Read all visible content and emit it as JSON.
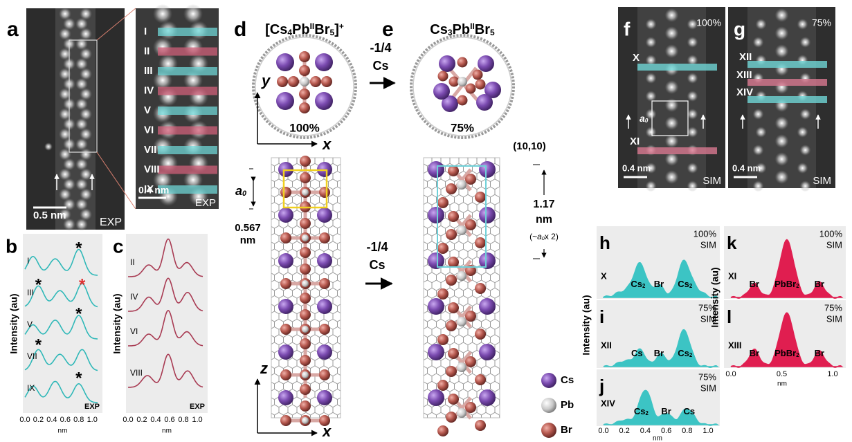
{
  "a": {
    "label": "a",
    "scale": "0.5 nm",
    "mode": "EXP"
  },
  "a_inset": {
    "rows": [
      "I",
      "II",
      "III",
      "IV",
      "V",
      "VI",
      "VII",
      "VIII",
      "IX"
    ],
    "scale": "0.4 nm",
    "mode": "EXP"
  },
  "b": {
    "label": "b",
    "ylabel": "Intensity (au)",
    "traces": [
      "I",
      "III",
      "V",
      "VII",
      "IX"
    ],
    "asterisks": [
      "*",
      "*",
      "*",
      "*",
      "*",
      "*"
    ],
    "xticks": [
      "0.0",
      "0.2",
      "0.4",
      "0.6",
      "0.8",
      "1.0"
    ],
    "xlabel": "nm",
    "mode": "EXP"
  },
  "c": {
    "label": "c",
    "ylabel": "Intensity (au)",
    "traces": [
      "II",
      "IV",
      "VI",
      "VIII"
    ],
    "xticks": [
      "0.0",
      "0.2",
      "0.4",
      "0.6",
      "0.8",
      "1.0"
    ],
    "xlabel": "nm",
    "mode": "EXP"
  },
  "d": {
    "label": "d",
    "formula": [
      "[Cs",
      "4",
      "Pb",
      "II",
      "Br",
      "5",
      "]",
      "+"
    ],
    "fraction": "100%",
    "y_axis": "y",
    "x_axis": "x",
    "z_axis": "z",
    "x_axis_lower": "x",
    "a0": [
      "a",
      "0"
    ],
    "spacing": [
      "0.567",
      "nm"
    ]
  },
  "transition_top": [
    "-1/4",
    "Cs"
  ],
  "transition_bottom": [
    "-1/4",
    "Cs"
  ],
  "e": {
    "label": "e",
    "formula": [
      "Cs",
      "3",
      "Pb",
      "II",
      "Br",
      "5"
    ],
    "fraction": "75%",
    "chirality": "(10,10)",
    "spacing": [
      "1.17",
      "nm"
    ],
    "multiple": [
      "(~",
      "a",
      "0",
      "x 2)"
    ]
  },
  "legend": [
    "Cs",
    "Pb",
    "Br"
  ],
  "f": {
    "label": "f",
    "fraction": "100%",
    "rows": [
      "X",
      "XI"
    ],
    "a0": [
      "a",
      "0"
    ],
    "scale": "0.4 nm",
    "mode": "SIM"
  },
  "g": {
    "label": "g",
    "fraction": "75%",
    "rows": [
      "XII",
      "XIII",
      "XIV"
    ],
    "scale": "0.4 nm",
    "mode": "SIM"
  },
  "h": {
    "label": "h",
    "fraction": "100%",
    "mode": "SIM",
    "row": "X",
    "peaks": [
      [
        "Cs",
        "2"
      ],
      [
        "Br"
      ],
      [
        "Cs",
        "2"
      ]
    ]
  },
  "i": {
    "label": "i",
    "fraction": "75%",
    "mode": "SIM",
    "row": "XII",
    "peaks": [
      [
        "Cs"
      ],
      [
        "Br"
      ],
      [
        "Cs",
        "2"
      ]
    ]
  },
  "j": {
    "label": "j",
    "fraction": "75%",
    "mode": "SIM",
    "row": "XIV",
    "peaks": [
      [
        "Cs",
        "2"
      ],
      [
        "Br"
      ],
      [
        "Cs"
      ]
    ]
  },
  "hij_axes": {
    "ylabel": "Intensity (au)",
    "xticks": [
      "0.0",
      "0.2",
      "0.4",
      "0.6",
      "0.8",
      "1.0"
    ],
    "xlabel": "nm"
  },
  "k": {
    "label": "k",
    "fraction": "100%",
    "mode": "SIM",
    "row": "XI",
    "peaks": [
      [
        "Br"
      ],
      [
        "PbBr",
        "2"
      ],
      [
        "Br"
      ]
    ]
  },
  "l": {
    "label": "l",
    "fraction": "75%",
    "mode": "SIM",
    "row": "XIII",
    "peaks": [
      [
        "Br"
      ],
      [
        "PbBr",
        "2"
      ],
      [
        "Br"
      ]
    ]
  },
  "kl_axes": {
    "ylabel": "Intensity (au)",
    "xticks": [
      "0.0",
      "0.5",
      "1.0"
    ],
    "xlabel": "nm"
  }
}
